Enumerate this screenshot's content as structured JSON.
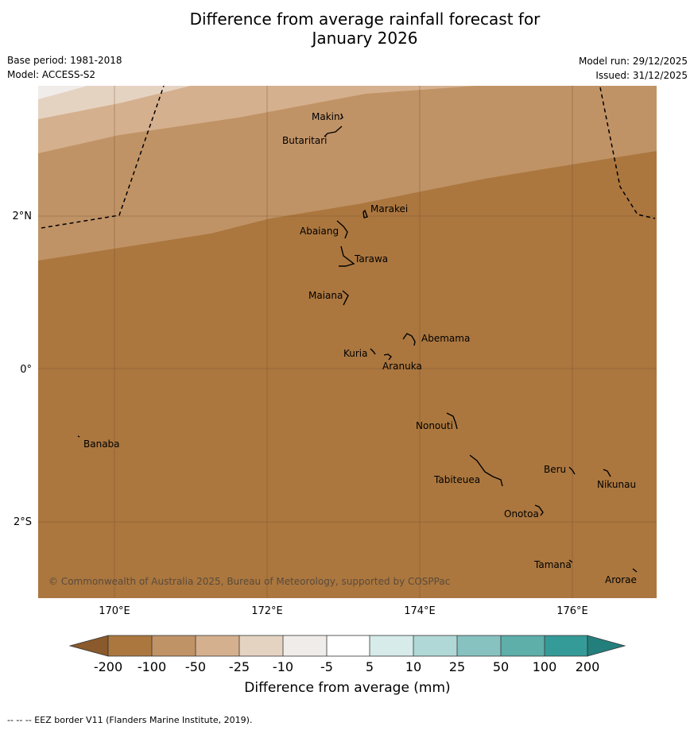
{
  "title_line1": "Difference from average rainfall forecast for",
  "title_line2": "January 2026",
  "base_period": "Base period: 1981-2018",
  "model": "Model: ACCESS-S2",
  "model_run": "Model run: 29/12/2025",
  "issued": "Issued: 31/12/2025",
  "copyright": "© Commonwealth of Australia 2025, Bureau of Meteorology, supported by COSPPac",
  "footnote": "--  --  -- EEZ border V11 (Flanders Marine Institute, 2019).",
  "lon_ticks": [
    "170°E",
    "172°E",
    "174°E",
    "176°E"
  ],
  "lat_ticks": [
    "2°N",
    "0°",
    "2°S"
  ],
  "places": [
    "Makin",
    "Butaritari",
    "Marakei",
    "Abaiang",
    "Tarawa",
    "Maiana",
    "Abemama",
    "Kuria",
    "Aranuka",
    "Nonouti",
    "Banaba",
    "Beru",
    "Nikunau",
    "Tabiteuea",
    "Onotoa",
    "Tamana",
    "Arorae"
  ],
  "colorbar": {
    "title": "Difference from average (mm)",
    "ticks": [
      "-200",
      "-100",
      "-50",
      "-25",
      "-10",
      "-5",
      "5",
      "10",
      "25",
      "50",
      "100",
      "200"
    ],
    "colors": {
      "lt_-200": "#8a5a2c",
      "-200_-100": "#ab773f",
      "-100_-50": "#c09366",
      "-50_-25": "#d5b08e",
      "-25_-10": "#e5d3c2",
      "-10_-5": "#f0ecea",
      "-5_5": "#ffffff",
      "5_10": "#d6ebea",
      "10_25": "#b0d8d6",
      "25_50": "#87c2c0",
      "50_100": "#5eaeaa",
      "100_200": "#359b98",
      "gt_200": "#237f7c"
    }
  }
}
